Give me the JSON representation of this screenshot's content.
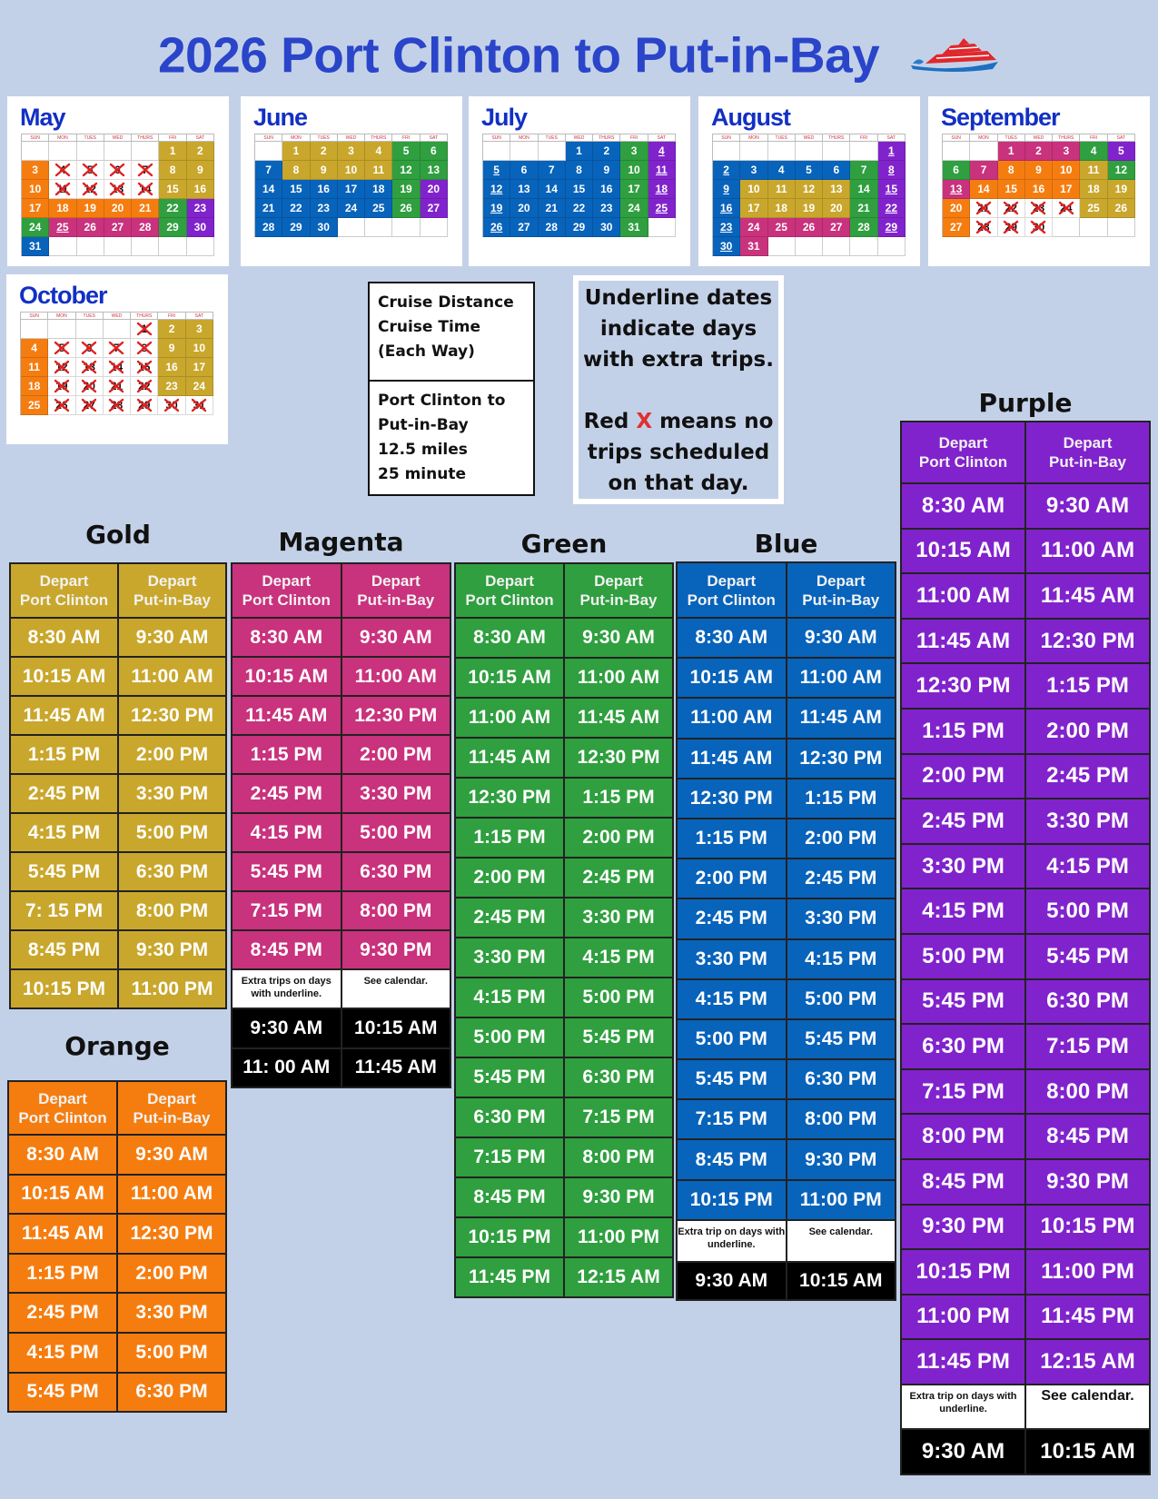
{
  "title": "2026 Port Clinton to Put-in-Bay",
  "colors": {
    "gold": "#c9a72c",
    "orange": "#f57d10",
    "magenta": "#c9327c",
    "green": "#2f9f3f",
    "blue": "#0863bb",
    "purple": "#8123cc",
    "title": "#2a45c9",
    "background": "#c3d1e8",
    "no_trip_x": "#e02020"
  },
  "calendar_legend": {
    "G": "gold",
    "O": "orange",
    "M": "magenta",
    "N": "green",
    "B": "blue",
    "P": "purple",
    "X": "no trips (red X)"
  },
  "weekdays": [
    "SUN",
    "MON",
    "TUES",
    "WED",
    "THURS",
    "FRI",
    "SAT"
  ],
  "months": [
    {
      "name": "May",
      "start_weekday": 5,
      "days": "GGOXXXXGGOXXXXGGOOOOONPNMMMMNPB",
      "underlined": [
        25
      ]
    },
    {
      "name": "June",
      "start_weekday": 1,
      "days": "GGGGNNBGGGGNNBBBBBNPBBBBBNPBBB",
      "underlined": []
    },
    {
      "name": "July",
      "start_weekday": 3,
      "days": "BBNPBBBBBNPBBBBBNPBBBBBNPBBBBBN",
      "underlined": [
        4,
        5,
        11,
        12,
        18,
        19,
        25,
        26
      ]
    },
    {
      "name": "August",
      "start_weekday": 6,
      "days": "PBBBBBNPBGGGGNPBGGGGNPBMMMMNPBM",
      "underlined": [
        1,
        2,
        8,
        9,
        15,
        16,
        22,
        23,
        29,
        30
      ]
    },
    {
      "name": "September",
      "start_weekday": 2,
      "days": "MMMNPNMOOOGNMOOOOGGOXXXXGGOXXX",
      "underlined": [
        13
      ]
    },
    {
      "name": "October",
      "start_weekday": 4,
      "days": "XGGOXXXXGGOXXXXGGOXXXXGGOXXXXXX",
      "underlined": []
    }
  ],
  "cruise_info": {
    "heading": [
      "Cruise Distance",
      "Cruise Time",
      "(Each Way)"
    ],
    "details": [
      "Port Clinton to",
      "Put-in-Bay",
      "12.5 miles",
      "25 minute"
    ]
  },
  "legend_note": {
    "underline": [
      "Underline dates",
      "indicate days",
      "with extra trips."
    ],
    "red_x_pre": "Red ",
    "red_x_mark": "X",
    "red_x_post": " means no",
    "red_x_rest": [
      "trips scheduled",
      "on that day."
    ]
  },
  "column_headers": [
    [
      "Depart",
      "Port Clinton"
    ],
    [
      "Depart",
      "Put-in-Bay"
    ]
  ],
  "schedules": [
    {
      "name": "Gold",
      "color": "gold",
      "trips": [
        [
          "8:30 AM",
          "9:30 AM"
        ],
        [
          "10:15 AM",
          "11:00 AM"
        ],
        [
          "11:45 AM",
          "12:30 PM"
        ],
        [
          "1:15 PM",
          "2:00 PM"
        ],
        [
          "2:45 PM",
          "3:30 PM"
        ],
        [
          "4:15 PM",
          "5:00 PM"
        ],
        [
          "5:45 PM",
          "6:30 PM"
        ],
        [
          "7: 15 PM",
          "8:00 PM"
        ],
        [
          "8:45 PM",
          "9:30 PM"
        ],
        [
          "10:15 PM",
          "11:00 PM"
        ]
      ]
    },
    {
      "name": "Orange",
      "color": "orange",
      "trips": [
        [
          "8:30 AM",
          "9:30 AM"
        ],
        [
          "10:15 AM",
          "11:00 AM"
        ],
        [
          "11:45 AM",
          "12:30 PM"
        ],
        [
          "1:15 PM",
          "2:00 PM"
        ],
        [
          "2:45 PM",
          "3:30 PM"
        ],
        [
          "4:15 PM",
          "5:00 PM"
        ],
        [
          "5:45 PM",
          "6:30 PM"
        ]
      ]
    },
    {
      "name": "Magenta",
      "color": "magenta",
      "trips": [
        [
          "8:30 AM",
          "9:30 AM"
        ],
        [
          "10:15 AM",
          "11:00 AM"
        ],
        [
          "11:45 AM",
          "12:30 PM"
        ],
        [
          "1:15 PM",
          "2:00 PM"
        ],
        [
          "2:45 PM",
          "3:30 PM"
        ],
        [
          "4:15 PM",
          "5:00 PM"
        ],
        [
          "5:45 PM",
          "6:30 PM"
        ],
        [
          "7:15 PM",
          "8:00 PM"
        ],
        [
          "8:45 PM",
          "9:30 PM"
        ]
      ],
      "note": [
        "Extra trips on days with underline.",
        "See calendar."
      ],
      "extra": [
        [
          "9:30 AM",
          "10:15 AM"
        ],
        [
          "11: 00 AM",
          "11:45 AM"
        ]
      ]
    },
    {
      "name": "Green",
      "color": "green",
      "trips": [
        [
          "8:30 AM",
          "9:30 AM"
        ],
        [
          "10:15 AM",
          "11:00 AM"
        ],
        [
          "11:00 AM",
          "11:45 AM"
        ],
        [
          "11:45 AM",
          "12:30 PM"
        ],
        [
          "12:30 PM",
          "1:15 PM"
        ],
        [
          "1:15 PM",
          "2:00 PM"
        ],
        [
          "2:00 PM",
          "2:45 PM"
        ],
        [
          "2:45 PM",
          "3:30 PM"
        ],
        [
          "3:30 PM",
          "4:15 PM"
        ],
        [
          "4:15 PM",
          "5:00 PM"
        ],
        [
          "5:00 PM",
          "5:45 PM"
        ],
        [
          "5:45 PM",
          "6:30 PM"
        ],
        [
          "6:30 PM",
          "7:15 PM"
        ],
        [
          "7:15 PM",
          "8:00 PM"
        ],
        [
          "8:45 PM",
          "9:30 PM"
        ],
        [
          "10:15 PM",
          "11:00 PM"
        ],
        [
          "11:45 PM",
          "12:15 AM"
        ]
      ]
    },
    {
      "name": "Blue",
      "color": "blue",
      "trips": [
        [
          "8:30 AM",
          "9:30 AM"
        ],
        [
          "10:15 AM",
          "11:00 AM"
        ],
        [
          "11:00 AM",
          "11:45 AM"
        ],
        [
          "11:45 AM",
          "12:30 PM"
        ],
        [
          "12:30 PM",
          "1:15 PM"
        ],
        [
          "1:15 PM",
          "2:00 PM"
        ],
        [
          "2:00 PM",
          "2:45 PM"
        ],
        [
          "2:45 PM",
          "3:30 PM"
        ],
        [
          "3:30 PM",
          "4:15 PM"
        ],
        [
          "4:15 PM",
          "5:00 PM"
        ],
        [
          "5:00 PM",
          "5:45 PM"
        ],
        [
          "5:45 PM",
          "6:30 PM"
        ],
        [
          "7:15 PM",
          "8:00 PM"
        ],
        [
          "8:45 PM",
          "9:30 PM"
        ],
        [
          "10:15 PM",
          "11:00 PM"
        ]
      ],
      "note": [
        "Extra trip on days with underline.",
        "See calendar."
      ],
      "extra": [
        [
          "9:30 AM",
          "10:15 AM"
        ]
      ]
    },
    {
      "name": "Purple",
      "color": "purple",
      "trips": [
        [
          "8:30 AM",
          "9:30 AM"
        ],
        [
          "10:15 AM",
          "11:00 AM"
        ],
        [
          "11:00 AM",
          "11:45 AM"
        ],
        [
          "11:45 AM",
          "12:30 PM"
        ],
        [
          "12:30 PM",
          "1:15 PM"
        ],
        [
          "1:15 PM",
          "2:00 PM"
        ],
        [
          "2:00 PM",
          "2:45 PM"
        ],
        [
          "2:45 PM",
          "3:30 PM"
        ],
        [
          "3:30 PM",
          "4:15 PM"
        ],
        [
          "4:15 PM",
          "5:00 PM"
        ],
        [
          "5:00 PM",
          "5:45 PM"
        ],
        [
          "5:45 PM",
          "6:30 PM"
        ],
        [
          "6:30 PM",
          "7:15 PM"
        ],
        [
          "7:15 PM",
          "8:00 PM"
        ],
        [
          "8:00 PM",
          "8:45 PM"
        ],
        [
          "8:45 PM",
          "9:30 PM"
        ],
        [
          "9:30 PM",
          "10:15 PM"
        ],
        [
          "10:15 PM",
          "11:00 PM"
        ],
        [
          "11:00 PM",
          "11:45 PM"
        ],
        [
          "11:45 PM",
          "12:15 AM"
        ]
      ],
      "note": [
        "Extra trip on days with underline.",
        "See calendar."
      ],
      "extra": [
        [
          "9:30 AM",
          "10:15 AM"
        ]
      ]
    }
  ]
}
